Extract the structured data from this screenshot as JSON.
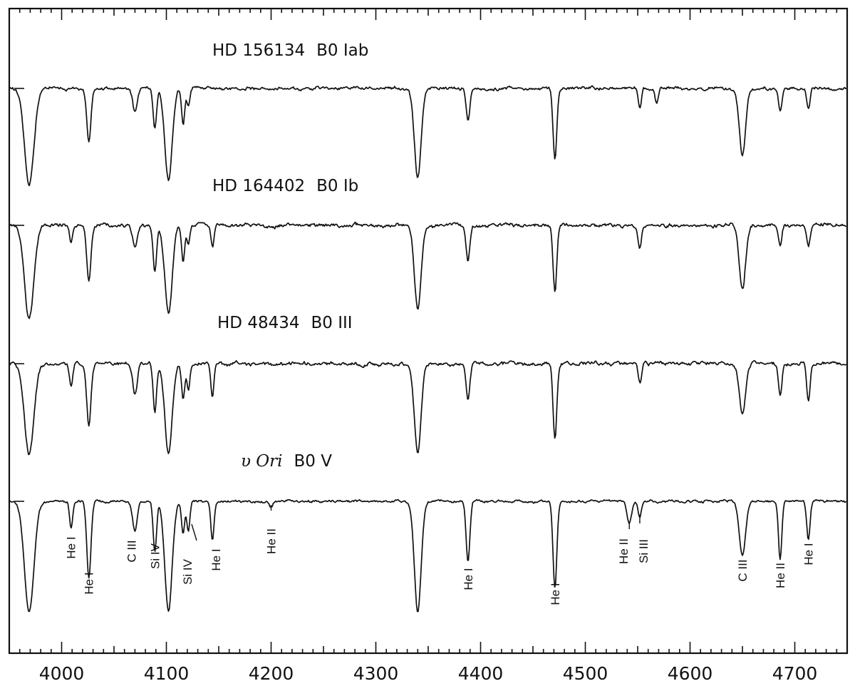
{
  "chart_data": {
    "type": "line",
    "xlabel": "",
    "ylabel": "",
    "xlim": [
      3950,
      4750
    ],
    "x_ticks": [
      4000,
      4100,
      4200,
      4300,
      4400,
      4500,
      4600,
      4700
    ],
    "x_tick_labels": [
      "4000",
      "4100",
      "4200",
      "4300",
      "4400",
      "4500",
      "4600",
      "4700"
    ],
    "grid": false,
    "legend": "none",
    "series": [
      {
        "name": "HD 156134  B0 Iab",
        "name_parts": [
          "HD 156134",
          "B0 Iab"
        ],
        "noise": 0.06,
        "lines": [
          [
            3969,
            1.0,
            4.5
          ],
          [
            4026,
            0.55,
            2.0
          ],
          [
            4070,
            0.25,
            2.2
          ],
          [
            4089,
            0.42,
            1.6
          ],
          [
            4102,
            0.95,
            3.5
          ],
          [
            4116,
            0.38,
            1.5
          ],
          [
            4121,
            0.2,
            1.5
          ],
          [
            4340,
            0.92,
            3.2
          ],
          [
            4388,
            0.32,
            1.8
          ],
          [
            4471,
            0.72,
            1.8
          ],
          [
            4552,
            0.22,
            1.5
          ],
          [
            4568,
            0.15,
            1.5
          ],
          [
            4650,
            0.68,
            3.0
          ],
          [
            4686,
            0.22,
            1.6
          ],
          [
            4713,
            0.22,
            1.6
          ]
        ]
      },
      {
        "name": "HD 164402  B0 Ib",
        "name_parts": [
          "HD 164402",
          "B0 Ib"
        ],
        "noise": 0.07,
        "lines": [
          [
            3969,
            1.0,
            4.5
          ],
          [
            4009,
            0.2,
            1.5
          ],
          [
            4026,
            0.6,
            2.0
          ],
          [
            4070,
            0.25,
            2.2
          ],
          [
            4089,
            0.48,
            1.6
          ],
          [
            4102,
            0.95,
            3.5
          ],
          [
            4116,
            0.38,
            1.5
          ],
          [
            4121,
            0.2,
            1.5
          ],
          [
            4144,
            0.22,
            1.5
          ],
          [
            4340,
            0.9,
            3.2
          ],
          [
            4388,
            0.38,
            1.8
          ],
          [
            4471,
            0.72,
            1.8
          ],
          [
            4552,
            0.25,
            1.5
          ],
          [
            4650,
            0.68,
            3.0
          ],
          [
            4686,
            0.22,
            1.6
          ],
          [
            4713,
            0.22,
            1.6
          ]
        ]
      },
      {
        "name": "HD 48434  B0 III",
        "name_parts": [
          "HD 48434",
          "B0 III"
        ],
        "noise": 0.07,
        "lines": [
          [
            3969,
            1.0,
            4.5
          ],
          [
            4009,
            0.25,
            1.5
          ],
          [
            4026,
            0.7,
            2.0
          ],
          [
            4070,
            0.35,
            2.2
          ],
          [
            4089,
            0.55,
            1.6
          ],
          [
            4102,
            1.0,
            3.5
          ],
          [
            4116,
            0.4,
            1.5
          ],
          [
            4121,
            0.3,
            1.5
          ],
          [
            4144,
            0.4,
            1.5
          ],
          [
            4340,
            1.0,
            3.2
          ],
          [
            4388,
            0.4,
            1.8
          ],
          [
            4471,
            0.85,
            1.8
          ],
          [
            4552,
            0.22,
            1.5
          ],
          [
            4650,
            0.55,
            3.0
          ],
          [
            4686,
            0.35,
            1.6
          ],
          [
            4713,
            0.42,
            1.6
          ]
        ]
      },
      {
        "name": "υ Ori  B0 V",
        "name_parts": [
          "υ Ori",
          "B0 V"
        ],
        "noise": 0.045,
        "lines": [
          [
            3969,
            1.0,
            4.5
          ],
          [
            4009,
            0.25,
            1.5
          ],
          [
            4026,
            0.7,
            2.0
          ],
          [
            4070,
            0.28,
            2.2
          ],
          [
            4089,
            0.45,
            1.6
          ],
          [
            4102,
            1.0,
            3.5
          ],
          [
            4116,
            0.3,
            1.5
          ],
          [
            4121,
            0.28,
            1.5
          ],
          [
            4144,
            0.35,
            1.5
          ],
          [
            4200,
            0.05,
            1.5
          ],
          [
            4340,
            1.0,
            3.2
          ],
          [
            4388,
            0.55,
            1.8
          ],
          [
            4471,
            0.78,
            1.8
          ],
          [
            4542,
            0.2,
            2.2
          ],
          [
            4552,
            0.15,
            1.5
          ],
          [
            4650,
            0.5,
            3.0
          ],
          [
            4686,
            0.52,
            1.6
          ],
          [
            4713,
            0.35,
            1.6
          ]
        ]
      }
    ],
    "annotations": [
      {
        "text": "He I",
        "wavelength": 4009
      },
      {
        "text": "He I",
        "wavelength": 4026
      },
      {
        "text": "C III",
        "wavelength": 4070
      },
      {
        "text": "Si IV",
        "wavelength": 4089
      },
      {
        "text": "Si IV",
        "wavelength": 4116
      },
      {
        "text": "He I",
        "wavelength": 4144
      },
      {
        "text": "He II",
        "wavelength": 4200
      },
      {
        "text": "He I",
        "wavelength": 4388
      },
      {
        "text": "He I",
        "wavelength": 4471
      },
      {
        "text": "He II",
        "wavelength": 4542
      },
      {
        "text": "Si III",
        "wavelength": 4552
      },
      {
        "text": "C III",
        "wavelength": 4650
      },
      {
        "text": "He II",
        "wavelength": 4686
      },
      {
        "text": "He I",
        "wavelength": 4713
      }
    ]
  }
}
